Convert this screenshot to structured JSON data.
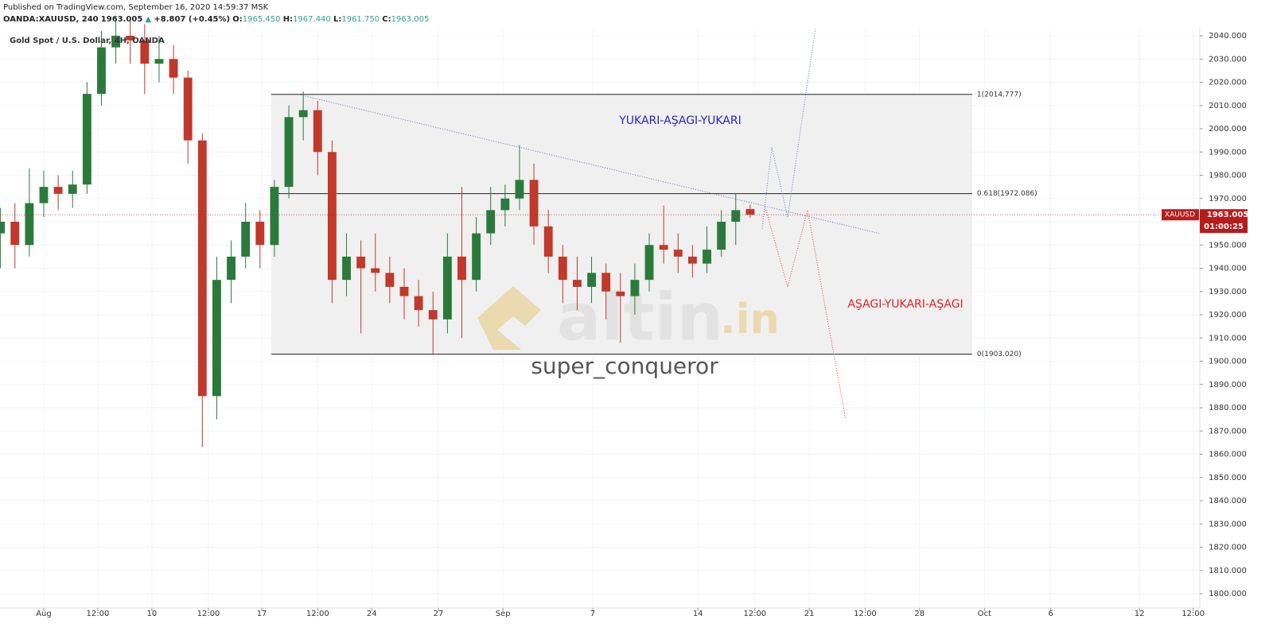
{
  "header": {
    "published": "Published on TradingView.com, September 16, 2020 14:59:37 MSK",
    "symbol": "OANDA:XAUUSD, 240",
    "price": "1963.005",
    "arrow": "▲",
    "change": "+8.807 (+0.45%)",
    "o_label": "O:",
    "o": "1965.450",
    "h_label": "H:",
    "h": "1967.440",
    "l_label": "L:",
    "l": "1961.750",
    "c_label": "C:",
    "c": "1963.005"
  },
  "watermark": {
    "brand": "altin",
    "brand_suffix": ".in",
    "author": "super_conqueror"
  },
  "chart_data": {
    "type": "candlestick",
    "title": "Gold Spot / U.S. Dollar, 4H, OANDA",
    "x": [
      -12,
      -8,
      -4,
      0,
      4,
      8,
      12,
      16,
      20,
      24,
      28,
      32,
      36,
      40,
      44,
      48,
      52,
      56,
      60,
      64,
      68,
      72,
      76,
      80,
      84,
      88,
      92,
      96,
      100,
      104,
      108,
      112,
      116,
      120,
      124,
      128,
      132,
      136,
      140,
      144,
      148,
      152,
      156,
      160,
      164,
      168,
      172,
      176,
      180,
      184,
      188,
      192,
      196
    ],
    "open": [
      1955,
      1960,
      1950,
      1968,
      1975,
      1972,
      1976,
      2015,
      2035,
      2040,
      2038,
      2028,
      2030,
      2022,
      1995,
      1885,
      1935,
      1945,
      1960,
      1950,
      1975,
      2005,
      2008,
      1990,
      1935,
      1945,
      1940,
      1938,
      1932,
      1928,
      1922,
      1918,
      1945,
      1935,
      1955,
      1965,
      1970,
      1978,
      1958,
      1945,
      1935,
      1932,
      1938,
      1930,
      1928,
      1935,
      1950,
      1948,
      1945,
      1942,
      1948,
      1960,
      1965.45
    ],
    "high": [
      1966,
      1968,
      1983,
      1982,
      1980,
      1982,
      2020,
      2042,
      2048,
      2048,
      2045,
      2040,
      2036,
      2025,
      1998,
      1945,
      1952,
      1968,
      1965,
      1978,
      2010,
      2016,
      2012,
      1995,
      1955,
      1952,
      1955,
      1945,
      1940,
      1935,
      1930,
      1955,
      1975,
      1962,
      1975,
      1976,
      1993,
      1985,
      1965,
      1950,
      1945,
      1945,
      1942,
      1938,
      1942,
      1955,
      1967,
      1955,
      1950,
      1958,
      1965,
      1972,
      1967.44
    ],
    "low": [
      1940,
      1940,
      1945,
      1962,
      1965,
      1966,
      1972,
      2010,
      2028,
      2028,
      2015,
      2020,
      2015,
      1985,
      1863,
      1875,
      1925,
      1940,
      1940,
      1945,
      1970,
      1995,
      1980,
      1925,
      1928,
      1912,
      1930,
      1925,
      1918,
      1915,
      1903,
      1912,
      1910,
      1930,
      1950,
      1958,
      1965,
      1950,
      1938,
      1925,
      1922,
      1925,
      1918,
      1908,
      1920,
      1930,
      1942,
      1938,
      1936,
      1938,
      1945,
      1950,
      1961.75
    ],
    "close": [
      1960,
      1950,
      1968,
      1975,
      1972,
      1976,
      2015,
      2035,
      2040,
      2038,
      2028,
      2030,
      2022,
      1995,
      1885,
      1935,
      1945,
      1960,
      1950,
      1975,
      2005,
      2008,
      1990,
      1935,
      1945,
      1940,
      1938,
      1932,
      1928,
      1922,
      1918,
      1945,
      1935,
      1955,
      1965,
      1970,
      1978,
      1958,
      1945,
      1935,
      1932,
      1938,
      1930,
      1928,
      1935,
      1950,
      1948,
      1945,
      1942,
      1948,
      1960,
      1965,
      1963.005
    ],
    "up_color": "#2b7a3b",
    "down_color": "#c0392b",
    "xlim": [
      -12.14,
      320.75
    ],
    "xticks": [
      {
        "value": 0,
        "label": "Aug"
      },
      {
        "value": 15,
        "label": "12:00"
      },
      {
        "value": 30,
        "label": "10"
      },
      {
        "value": 45.7,
        "label": "12:00"
      },
      {
        "value": 60.5,
        "label": "17"
      },
      {
        "value": 76,
        "label": "12:00"
      },
      {
        "value": 91,
        "label": "24"
      },
      {
        "value": 109.5,
        "label": "27"
      },
      {
        "value": 127.4,
        "label": "Sep"
      },
      {
        "value": 152.3,
        "label": "7"
      },
      {
        "value": 181.5,
        "label": "14"
      },
      {
        "value": 197.3,
        "label": "12:00"
      },
      {
        "value": 212.4,
        "label": "21"
      },
      {
        "value": 227.9,
        "label": "12:00"
      },
      {
        "value": 243,
        "label": "28"
      },
      {
        "value": 261,
        "label": "Oct"
      },
      {
        "value": 279.4,
        "label": "6"
      },
      {
        "value": 304,
        "label": "12"
      },
      {
        "value": 318.9,
        "label": "12:00"
      }
    ],
    "ylim": [
      1793.85,
      2043.42
    ],
    "yticks": [
      {
        "value": 1800,
        "label": "1800.000"
      },
      {
        "value": 1810,
        "label": "1810.000"
      },
      {
        "value": 1820,
        "label": "1820.000"
      },
      {
        "value": 1830,
        "label": "1830.000"
      },
      {
        "value": 1840,
        "label": "1840.000"
      },
      {
        "value": 1850,
        "label": "1850.000"
      },
      {
        "value": 1860,
        "label": "1860.000"
      },
      {
        "value": 1870,
        "label": "1870.000"
      },
      {
        "value": 1880,
        "label": "1880.000"
      },
      {
        "value": 1890,
        "label": "1890.000"
      },
      {
        "value": 1900,
        "label": "1900.000"
      },
      {
        "value": 1910,
        "label": "1910.000"
      },
      {
        "value": 1920,
        "label": "1920.000"
      },
      {
        "value": 1930,
        "label": "1930.000"
      },
      {
        "value": 1940,
        "label": "1940.000"
      },
      {
        "value": 1950,
        "label": "1950.000"
      },
      {
        "value": 1960,
        "label": "1960.000"
      },
      {
        "value": 1970,
        "label": "1970.000"
      },
      {
        "value": 1980,
        "label": "1980.000"
      },
      {
        "value": 1990,
        "label": "1990.000"
      },
      {
        "value": 2000,
        "label": "2000.000"
      },
      {
        "value": 2010,
        "label": "2010.000"
      },
      {
        "value": 2020,
        "label": "2020.000"
      },
      {
        "value": 2030,
        "label": "2030.000"
      },
      {
        "value": 2040,
        "label": "2040.000"
      }
    ],
    "grid": true,
    "last_price": {
      "value": 1963.005,
      "label": "1963.005"
    },
    "symbol_tag": "XAUUSD",
    "countdown": "01:00:25",
    "tag_color": "#b71c1c",
    "fib": {
      "x": [
        63.1,
        257.6
      ],
      "levels": [
        {
          "value": 2014.777,
          "label": "1(2014.777)"
        },
        {
          "value": 1972.086,
          "label": "0.618(1972.086)"
        },
        {
          "value": 1903.02,
          "label": "0(1903.020)"
        }
      ]
    },
    "trendline": {
      "x": [
        70,
        231.8
      ],
      "y": [
        2015,
        1955
      ],
      "color": "#5c6bc0"
    },
    "projections": [
      {
        "color": "#5b6ee1",
        "x": [
          199.3,
          202,
          206.4,
          214.1
        ],
        "y": [
          1957,
          1992,
          1962,
          2043
        ]
      },
      {
        "color": "#e53935",
        "x": [
          200.2,
          206.4,
          211.9,
          222.5
        ],
        "y": [
          1966,
          1932,
          1965,
          1875
        ]
      }
    ],
    "annotations": [
      {
        "text": "YUKARI-AŞAGI-YUKARI",
        "color": "#2525c8"
      },
      {
        "text": "AŞAGI-YUKARI-AŞAGI",
        "color": "#e52222"
      }
    ]
  }
}
